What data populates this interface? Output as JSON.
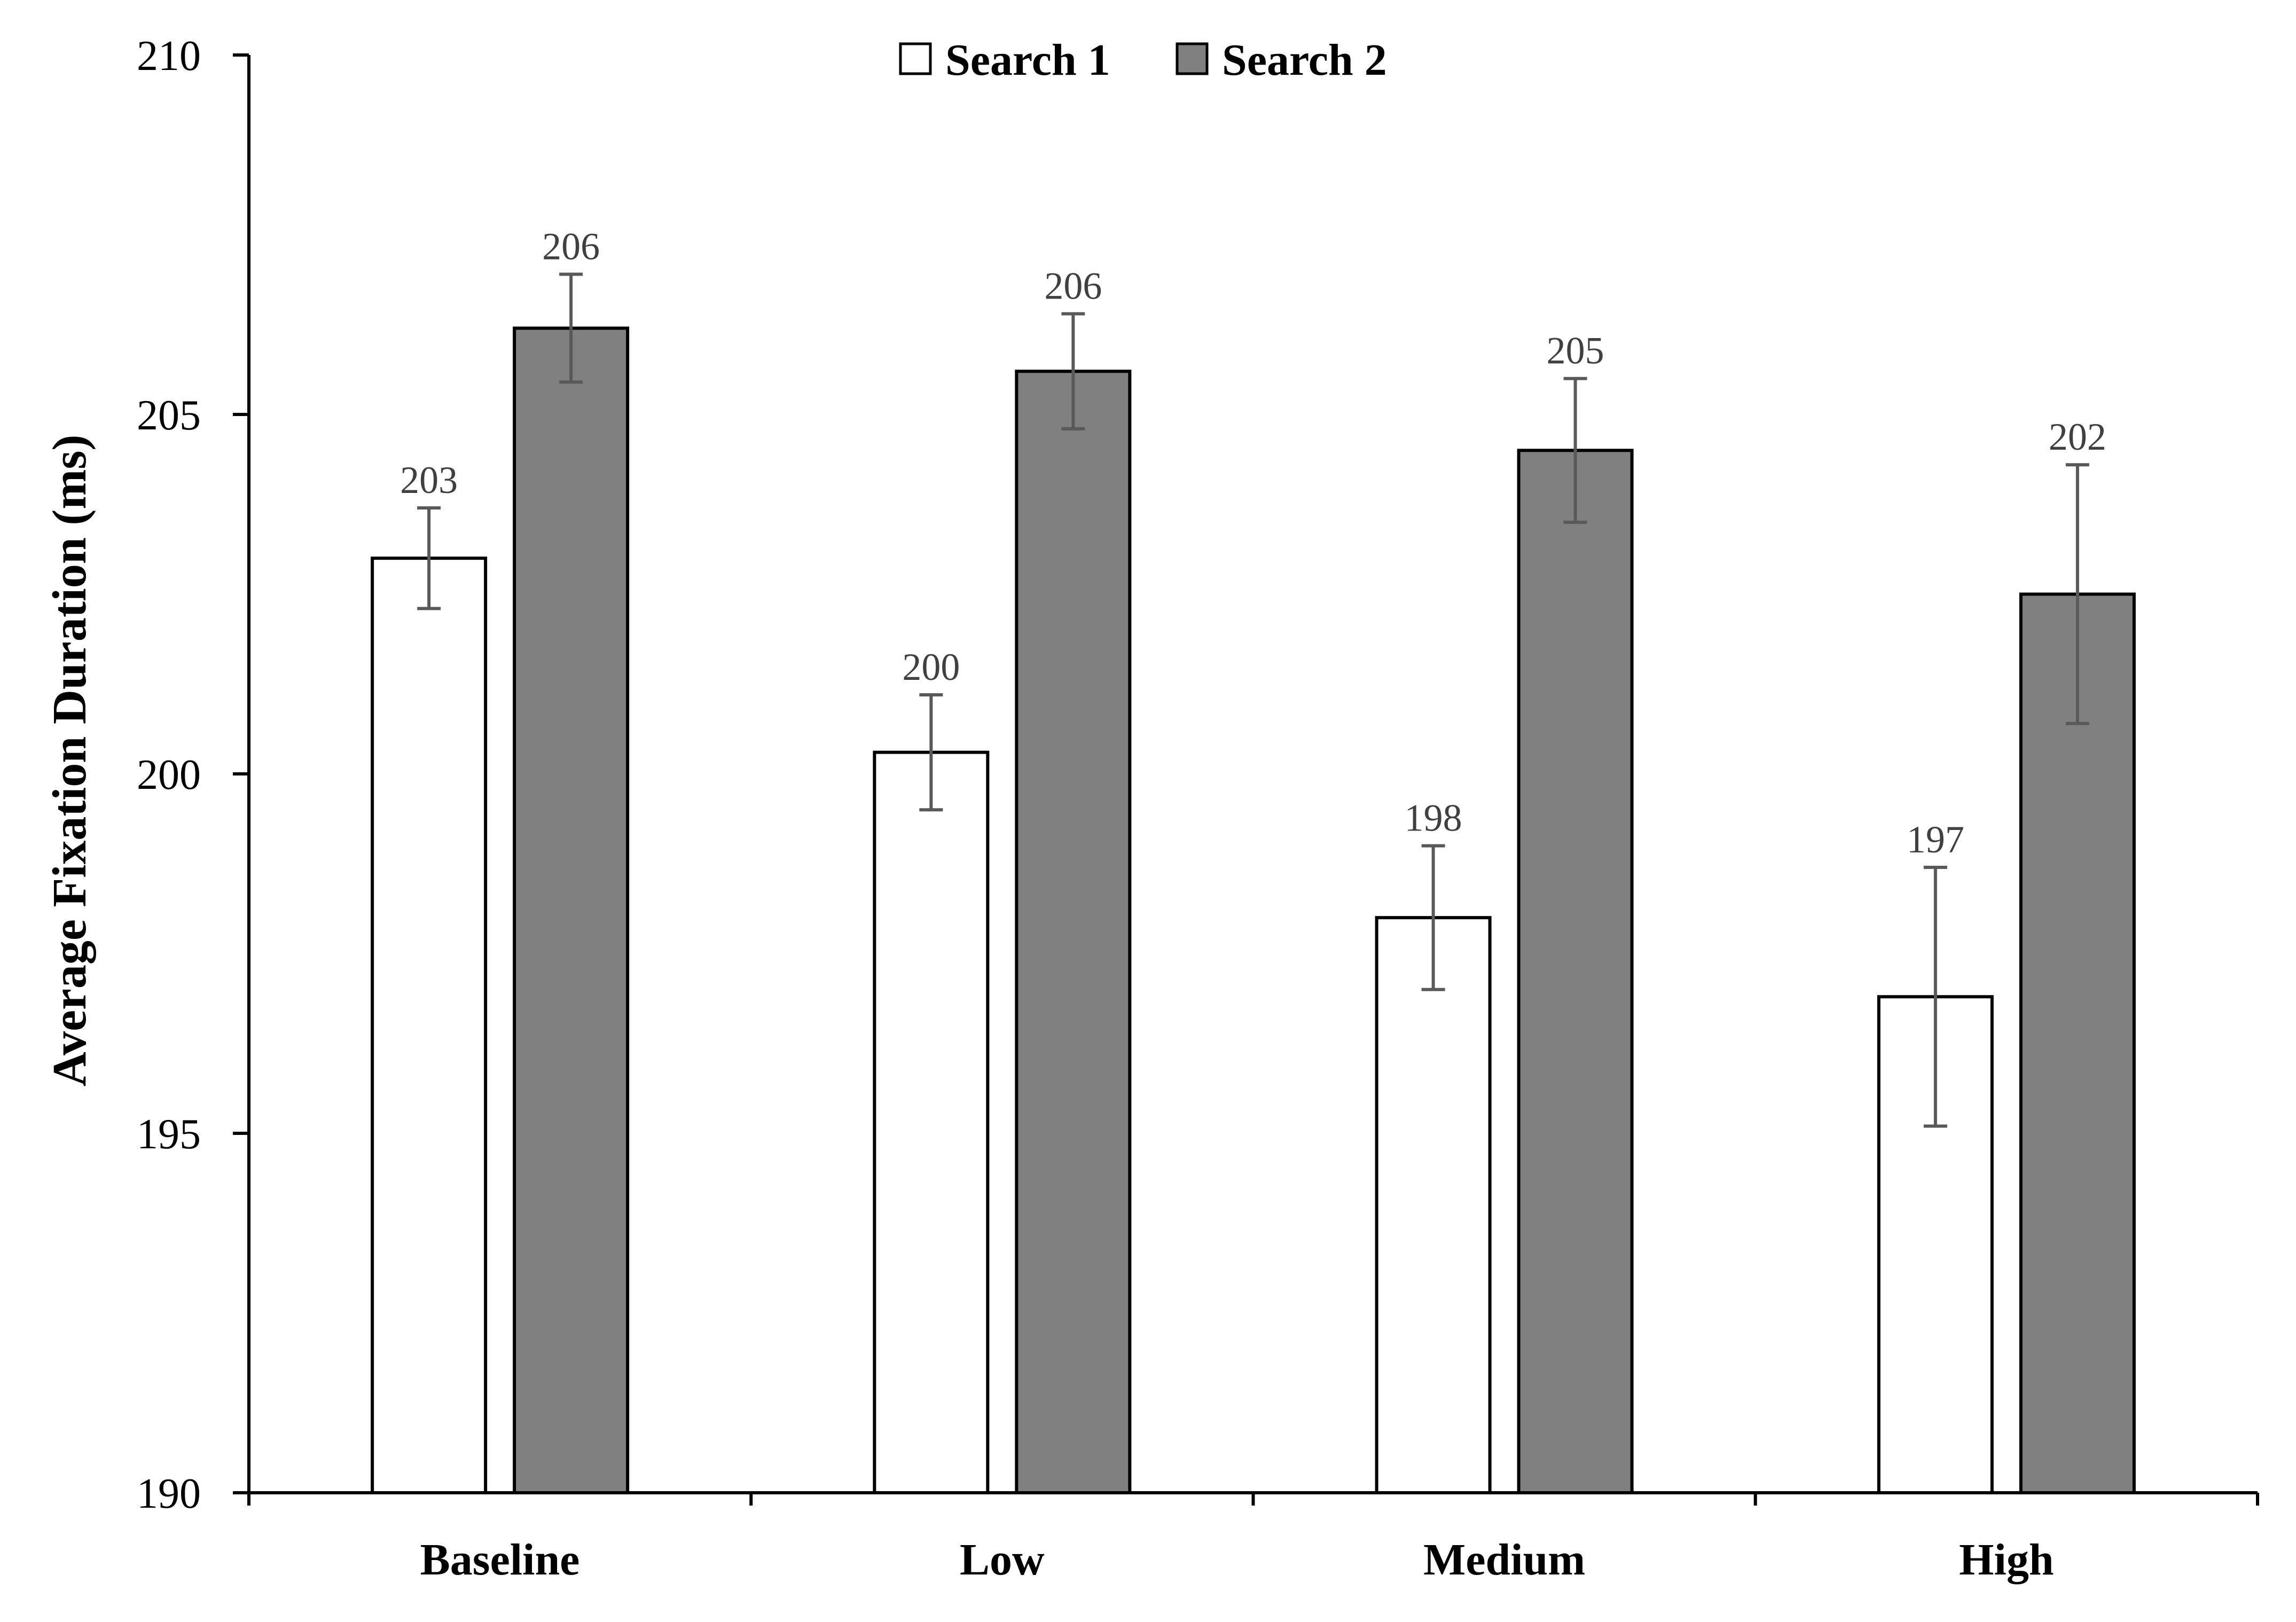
{
  "chart_data": {
    "type": "bar",
    "title": "",
    "xlabel": "",
    "ylabel": "Average Fixation Duration (ms)",
    "ylim": [
      190,
      210
    ],
    "yticks": [
      190,
      195,
      200,
      205,
      210
    ],
    "grid": false,
    "legend_position": "top-center",
    "categories": [
      "Baseline",
      "Low",
      "Medium",
      "High"
    ],
    "series": [
      {
        "name": "Search 1",
        "color": "#ffffff",
        "values": [
          203.0,
          200.3,
          198.0,
          196.9
        ],
        "error": [
          0.7,
          0.8,
          1.0,
          1.8
        ],
        "labels": [
          "203",
          "200",
          "198",
          "197"
        ]
      },
      {
        "name": "Search 2",
        "color": "#808080",
        "values": [
          206.2,
          205.6,
          204.5,
          202.5
        ],
        "error": [
          0.75,
          0.8,
          1.0,
          1.8
        ],
        "labels": [
          "206",
          "206",
          "205",
          "202"
        ]
      }
    ]
  }
}
